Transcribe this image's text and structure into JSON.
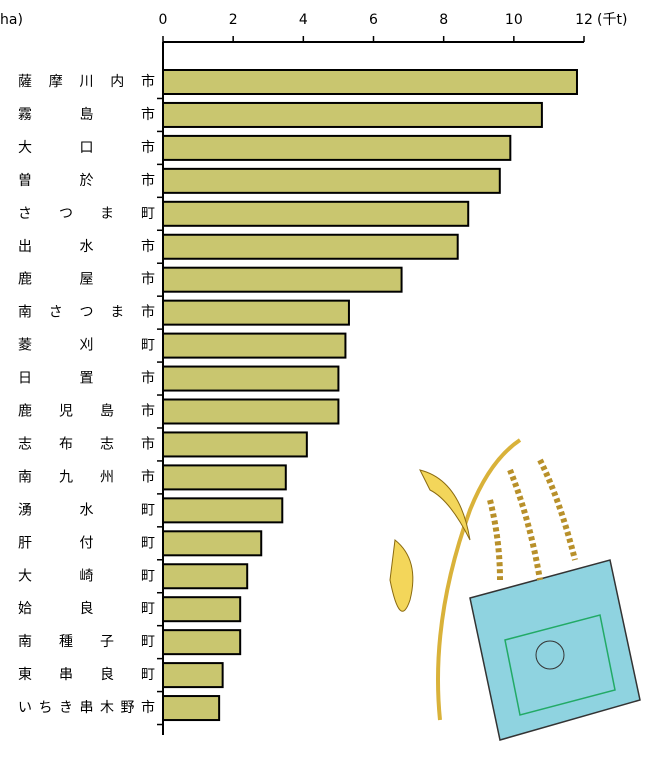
{
  "chart_data": {
    "type": "bar",
    "orientation": "horizontal",
    "y_unit": "ha)",
    "x_unit": "(千t)",
    "categories": [
      "薩摩川内市",
      "霧島市",
      "大口市",
      "曽於市",
      "さつま町",
      "出水市",
      "鹿屋市",
      "南さつま市",
      "菱刈町",
      "日置市",
      "鹿児島市",
      "志布志市",
      "南九州市",
      "湧水町",
      "肝付町",
      "大崎町",
      "姶良町",
      "南種子町",
      "東串良町",
      "いちき串木野市"
    ],
    "values": [
      11.8,
      10.8,
      9.9,
      9.6,
      8.7,
      8.4,
      6.8,
      5.3,
      5.2,
      5.0,
      5.0,
      4.1,
      3.5,
      3.4,
      2.8,
      2.4,
      2.2,
      2.2,
      1.7,
      1.6
    ],
    "color": "#c9c66f",
    "xlim": [
      0,
      12
    ],
    "xticks": [
      0,
      2,
      4,
      6,
      8,
      10,
      12
    ]
  }
}
